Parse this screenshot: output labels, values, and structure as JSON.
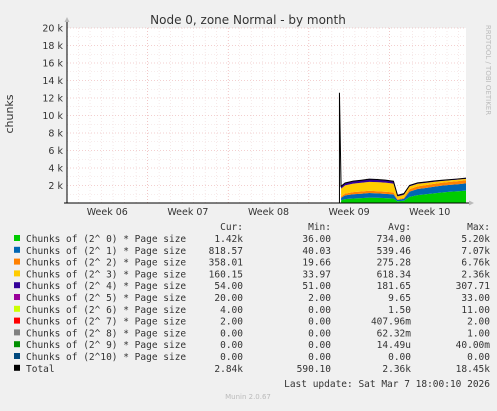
{
  "chart_data": {
    "type": "area",
    "title": "Node 0, zone Normal - by month",
    "ylabel": "chunks",
    "side_label": "RRDTOOL / TOBI OETIKER",
    "ylim": [
      0,
      20000
    ],
    "y_ticks": [
      {
        "value": 2000,
        "label": "2 k"
      },
      {
        "value": 4000,
        "label": "4 k"
      },
      {
        "value": 6000,
        "label": "6 k"
      },
      {
        "value": 8000,
        "label": "8 k"
      },
      {
        "value": 10000,
        "label": "10 k"
      },
      {
        "value": 12000,
        "label": "12 k"
      },
      {
        "value": 14000,
        "label": "14 k"
      },
      {
        "value": 16000,
        "label": "16 k"
      },
      {
        "value": 18000,
        "label": "18 k"
      },
      {
        "value": 20000,
        "label": "20 k"
      }
    ],
    "x_ticks": [
      "Week 06",
      "Week 07",
      "Week 08",
      "Week 09",
      "Week 10"
    ],
    "x_week_positions": [
      0.5,
      1.5,
      2.5,
      3.5,
      4.5
    ],
    "x_range_weeks": [
      0,
      4.95
    ],
    "spike": {
      "x": 3.38,
      "value": 12600
    },
    "series": [
      {
        "name": "Chunks of (2^ 0) * Page size",
        "color": "#00cc00",
        "cur": "1.42k",
        "min": "36.00",
        "avg": "734.00",
        "max": "5.20k",
        "points": [
          [
            3.4,
            300
          ],
          [
            3.45,
            450
          ],
          [
            3.55,
            520
          ],
          [
            3.65,
            560
          ],
          [
            3.75,
            620
          ],
          [
            3.85,
            600
          ],
          [
            3.95,
            560
          ],
          [
            4.05,
            520
          ],
          [
            4.1,
            200
          ],
          [
            4.18,
            260
          ],
          [
            4.25,
            700
          ],
          [
            4.35,
            900
          ],
          [
            4.45,
            1000
          ],
          [
            4.55,
            1100
          ],
          [
            4.65,
            1200
          ],
          [
            4.75,
            1280
          ],
          [
            4.85,
            1350
          ],
          [
            4.95,
            1420
          ]
        ]
      },
      {
        "name": "Chunks of (2^ 1) * Page size",
        "color": "#0066b3",
        "cur": "818.57",
        "min": "40.03",
        "avg": "539.46",
        "max": "7.07k",
        "points": [
          [
            3.4,
            300
          ],
          [
            3.45,
            420
          ],
          [
            3.55,
            480
          ],
          [
            3.65,
            500
          ],
          [
            3.75,
            520
          ],
          [
            3.85,
            500
          ],
          [
            3.95,
            480
          ],
          [
            4.05,
            460
          ],
          [
            4.1,
            150
          ],
          [
            4.18,
            220
          ],
          [
            4.25,
            600
          ],
          [
            4.35,
            700
          ],
          [
            4.45,
            720
          ],
          [
            4.55,
            760
          ],
          [
            4.65,
            780
          ],
          [
            4.75,
            790
          ],
          [
            4.85,
            800
          ],
          [
            4.95,
            819
          ]
        ]
      },
      {
        "name": "Chunks of (2^ 2) * Page size",
        "color": "#ff8000",
        "cur": "358.01",
        "min": "19.66",
        "avg": "275.28",
        "max": "6.76k",
        "points": [
          [
            3.4,
            150
          ],
          [
            3.45,
            200
          ],
          [
            3.55,
            240
          ],
          [
            3.65,
            250
          ],
          [
            3.75,
            260
          ],
          [
            3.85,
            250
          ],
          [
            3.95,
            240
          ],
          [
            4.05,
            240
          ],
          [
            4.1,
            100
          ],
          [
            4.18,
            120
          ],
          [
            4.25,
            280
          ],
          [
            4.35,
            300
          ],
          [
            4.45,
            320
          ],
          [
            4.55,
            330
          ],
          [
            4.65,
            340
          ],
          [
            4.75,
            345
          ],
          [
            4.85,
            350
          ],
          [
            4.95,
            358
          ]
        ]
      },
      {
        "name": "Chunks of (2^ 3) * Page size",
        "color": "#ffcc00",
        "cur": "160.15",
        "min": "33.97",
        "avg": "618.34",
        "max": "2.36k",
        "points": [
          [
            3.4,
            900
          ],
          [
            3.45,
            950
          ],
          [
            3.55,
            980
          ],
          [
            3.65,
            1000
          ],
          [
            3.75,
            1020
          ],
          [
            3.85,
            1040
          ],
          [
            3.95,
            1050
          ],
          [
            4.05,
            1000
          ],
          [
            4.1,
            300
          ],
          [
            4.18,
            350
          ],
          [
            4.25,
            320
          ],
          [
            4.35,
            300
          ],
          [
            4.45,
            260
          ],
          [
            4.55,
            230
          ],
          [
            4.65,
            200
          ],
          [
            4.75,
            180
          ],
          [
            4.85,
            170
          ],
          [
            4.95,
            160
          ]
        ]
      },
      {
        "name": "Chunks of (2^ 4) * Page size",
        "color": "#330099",
        "cur": "54.00",
        "min": "51.00",
        "avg": "181.65",
        "max": "307.71",
        "points": [
          [
            3.4,
            250
          ],
          [
            3.45,
            260
          ],
          [
            3.55,
            270
          ],
          [
            3.65,
            280
          ],
          [
            3.75,
            290
          ],
          [
            3.85,
            280
          ],
          [
            3.95,
            270
          ],
          [
            4.05,
            260
          ],
          [
            4.1,
            120
          ],
          [
            4.18,
            110
          ],
          [
            4.25,
            100
          ],
          [
            4.35,
            90
          ],
          [
            4.45,
            80
          ],
          [
            4.55,
            70
          ],
          [
            4.65,
            60
          ],
          [
            4.75,
            58
          ],
          [
            4.85,
            56
          ],
          [
            4.95,
            54
          ]
        ]
      },
      {
        "name": "Chunks of (2^ 5) * Page size",
        "color": "#990099",
        "cur": "20.00",
        "min": "2.00",
        "avg": "9.65",
        "max": "33.00",
        "points": [
          [
            3.4,
            10
          ],
          [
            3.95,
            12
          ],
          [
            4.1,
            5
          ],
          [
            4.95,
            20
          ]
        ]
      },
      {
        "name": "Chunks of (2^ 6) * Page size",
        "color": "#ccff00",
        "cur": "4.00",
        "min": "0.00",
        "avg": "1.50",
        "max": "11.00",
        "points": [
          [
            3.4,
            1
          ],
          [
            3.95,
            2
          ],
          [
            4.95,
            4
          ]
        ]
      },
      {
        "name": "Chunks of (2^ 7) * Page size",
        "color": "#ff0000",
        "cur": "2.00",
        "min": "0.00",
        "avg": "407.96m",
        "max": "2.00",
        "points": [
          [
            3.4,
            0
          ],
          [
            4.95,
            2
          ]
        ]
      },
      {
        "name": "Chunks of (2^ 8) * Page size",
        "color": "#808080",
        "cur": "0.00",
        "min": "0.00",
        "avg": "62.32m",
        "max": "1.00",
        "points": [
          [
            3.4,
            0
          ],
          [
            4.95,
            0
          ]
        ]
      },
      {
        "name": "Chunks of (2^ 9) * Page size",
        "color": "#008f00",
        "cur": "0.00",
        "min": "0.00",
        "avg": "14.49u",
        "max": "40.00m",
        "points": [
          [
            3.4,
            0
          ],
          [
            4.95,
            0
          ]
        ]
      },
      {
        "name": "Chunks of (2^10) * Page size",
        "color": "#00487d",
        "cur": "0.00",
        "min": "0.00",
        "avg": "0.00",
        "max": "0.00",
        "points": [
          [
            3.4,
            0
          ],
          [
            4.95,
            0
          ]
        ]
      }
    ],
    "total": {
      "name": "Total",
      "color": "#000000",
      "cur": "2.84k",
      "min": "590.10",
      "avg": "2.36k",
      "max": "18.45k"
    },
    "legend_headers": {
      "cur": "Cur:",
      "min": "Min:",
      "avg": "Avg:",
      "max": "Max:"
    },
    "last_update": "Last update: Sat Mar  7 18:00:10 2026",
    "footer": "Munin 2.0.67"
  }
}
